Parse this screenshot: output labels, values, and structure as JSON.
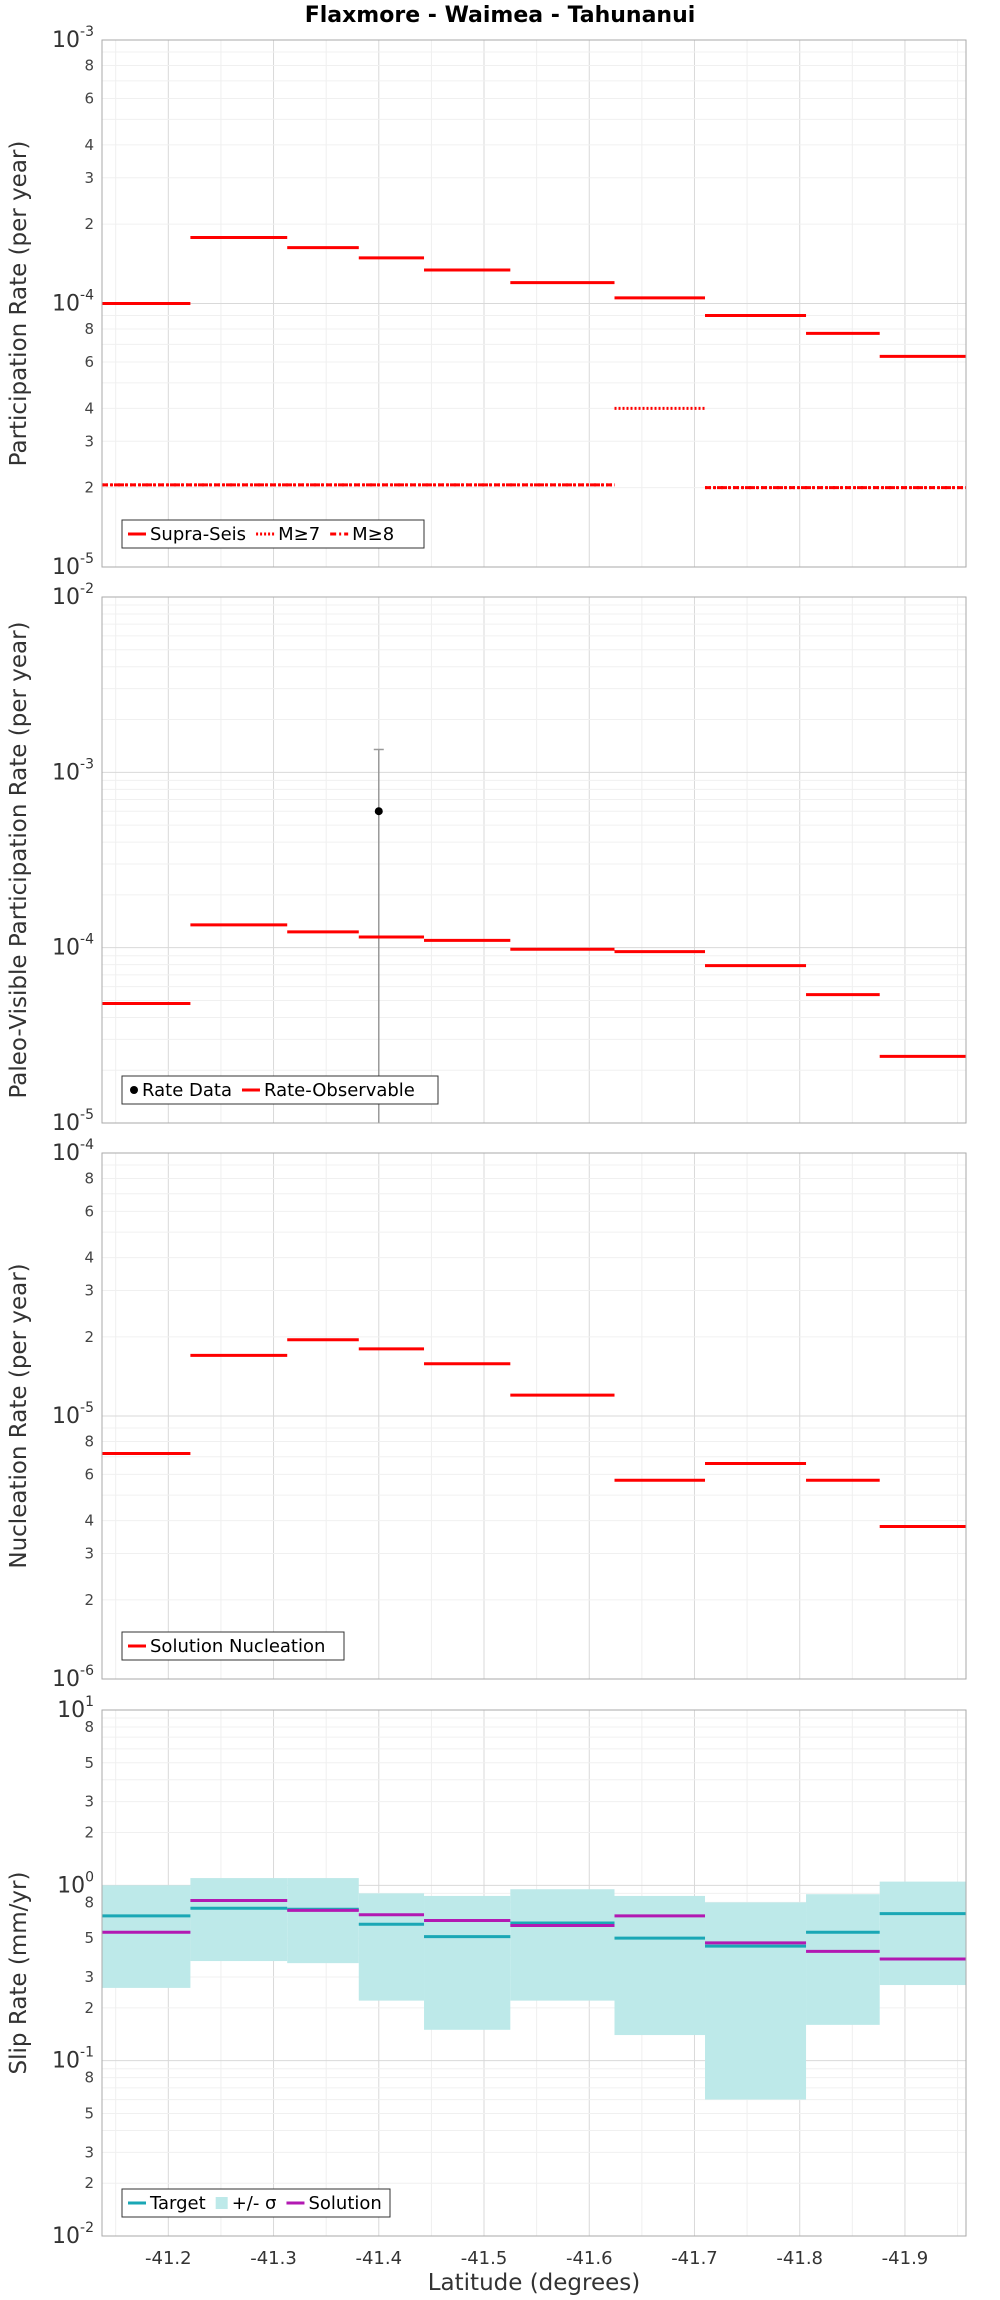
{
  "title": "Flaxmore - Waimea - Tahunanui",
  "xlabel": "Latitude (degrees)",
  "chart_data": [
    {
      "type": "line",
      "ylabel": "Participation Rate (per year)",
      "yscale": "log",
      "ylim": [
        1e-05,
        0.001
      ],
      "xlim": [
        -41.137,
        -41.958
      ],
      "major_ticks": [
        {
          "value": 1e-05,
          "base": "10",
          "exp": "-5"
        },
        {
          "value": 0.0001,
          "base": "10",
          "exp": "-4"
        },
        {
          "value": 0.001,
          "base": "10",
          "exp": "-3"
        }
      ],
      "minor_tick_labels": [
        "2",
        "3",
        "4",
        "6",
        "8"
      ],
      "legend": [
        "Supra-Seis",
        "M≥7",
        "M≥8"
      ],
      "series": [
        {
          "name": "Supra-Seis",
          "style": "solid",
          "color": "#ff0000",
          "segments": [
            [
              -41.137,
              -41.221,
              0.0001
            ],
            [
              -41.221,
              -41.313,
              0.000178
            ],
            [
              -41.313,
              -41.381,
              0.000163
            ],
            [
              -41.381,
              -41.443,
              0.000149
            ],
            [
              -41.443,
              -41.525,
              0.000134
            ],
            [
              -41.525,
              -41.624,
              0.00012
            ],
            [
              -41.624,
              -41.71,
              0.000105
            ],
            [
              -41.71,
              -41.806,
              9e-05
            ],
            [
              -41.806,
              -41.876,
              7.7e-05
            ],
            [
              -41.876,
              -41.958,
              6.3e-05
            ]
          ]
        },
        {
          "name": "M≥7",
          "style": "dotted",
          "color": "#ff0000",
          "segments": [
            [
              -41.137,
              -41.624,
              2.05e-05
            ],
            [
              -41.624,
              -41.71,
              4e-05
            ],
            [
              -41.71,
              -41.958,
              2e-05
            ]
          ]
        },
        {
          "name": "M≥8",
          "style": "dashdot",
          "color": "#ff0000",
          "segments": [
            [
              -41.137,
              -41.624,
              2.05e-05
            ],
            [
              -41.71,
              -41.958,
              2e-05
            ]
          ]
        }
      ]
    },
    {
      "type": "line",
      "ylabel": "Paleo-Visible Participation Rate (per year)",
      "yscale": "log",
      "ylim": [
        1e-05,
        0.01
      ],
      "xlim": [
        -41.137,
        -41.958
      ],
      "major_ticks": [
        {
          "value": 1e-05,
          "base": "10",
          "exp": "-5"
        },
        {
          "value": 0.0001,
          "base": "10",
          "exp": "-4"
        },
        {
          "value": 0.001,
          "base": "10",
          "exp": "-3"
        },
        {
          "value": 0.01,
          "base": "10",
          "exp": "-2"
        }
      ],
      "minor_tick_labels": [],
      "legend": [
        "Rate Data",
        "Rate-Observable"
      ],
      "rate_data": {
        "x": -41.4,
        "y": 0.0006,
        "err_low": 1e-05,
        "err_high": 0.00135
      },
      "series": [
        {
          "name": "Rate-Observable",
          "style": "solid",
          "color": "#ff0000",
          "segments": [
            [
              -41.137,
              -41.221,
              4.8e-05
            ],
            [
              -41.221,
              -41.313,
              0.000135
            ],
            [
              -41.313,
              -41.381,
              0.000123
            ],
            [
              -41.381,
              -41.443,
              0.000115
            ],
            [
              -41.443,
              -41.525,
              0.00011
            ],
            [
              -41.525,
              -41.624,
              9.8e-05
            ],
            [
              -41.624,
              -41.71,
              9.5e-05
            ],
            [
              -41.71,
              -41.806,
              7.9e-05
            ],
            [
              -41.806,
              -41.876,
              5.4e-05
            ],
            [
              -41.876,
              -41.958,
              2.4e-05
            ]
          ]
        }
      ]
    },
    {
      "type": "line",
      "ylabel": "Nucleation Rate (per year)",
      "yscale": "log",
      "ylim": [
        1e-06,
        0.0001
      ],
      "xlim": [
        -41.137,
        -41.958
      ],
      "major_ticks": [
        {
          "value": 1e-06,
          "base": "10",
          "exp": "-6"
        },
        {
          "value": 1e-05,
          "base": "10",
          "exp": "-5"
        },
        {
          "value": 0.0001,
          "base": "10",
          "exp": "-4"
        }
      ],
      "minor_tick_labels": [
        "2",
        "3",
        "4",
        "6",
        "8"
      ],
      "legend": [
        "Solution Nucleation"
      ],
      "series": [
        {
          "name": "Solution Nucleation",
          "style": "solid",
          "color": "#ff0000",
          "segments": [
            [
              -41.137,
              -41.221,
              7.2e-06
            ],
            [
              -41.221,
              -41.313,
              1.7e-05
            ],
            [
              -41.313,
              -41.381,
              1.95e-05
            ],
            [
              -41.381,
              -41.443,
              1.8e-05
            ],
            [
              -41.443,
              -41.525,
              1.58e-05
            ],
            [
              -41.525,
              -41.624,
              1.2e-05
            ],
            [
              -41.624,
              -41.71,
              5.7e-06
            ],
            [
              -41.71,
              -41.806,
              6.6e-06
            ],
            [
              -41.806,
              -41.876,
              5.7e-06
            ],
            [
              -41.876,
              -41.958,
              3.8e-06
            ]
          ]
        }
      ]
    },
    {
      "type": "line",
      "ylabel": "Slip Rate (mm/yr)",
      "yscale": "log",
      "ylim": [
        0.01,
        10
      ],
      "xlim": [
        -41.137,
        -41.958
      ],
      "major_ticks": [
        {
          "value": 0.01,
          "base": "10",
          "exp": "-2"
        },
        {
          "value": 0.1,
          "base": "10",
          "exp": "-1"
        },
        {
          "value": 1,
          "base": "10",
          "exp": "0"
        },
        {
          "value": 10,
          "base": "10",
          "exp": "1"
        }
      ],
      "minor_tick_labels": [
        "2",
        "3",
        "5",
        "8"
      ],
      "legend": [
        "Target",
        "+/- σ",
        "Solution"
      ],
      "sigma_band": {
        "name": "+/- σ",
        "color": "#bde9e9",
        "segments": [
          [
            -41.137,
            -41.221,
            0.26,
            1.0
          ],
          [
            -41.221,
            -41.313,
            0.37,
            1.1
          ],
          [
            -41.313,
            -41.381,
            0.36,
            1.1
          ],
          [
            -41.381,
            -41.443,
            0.22,
            0.9
          ],
          [
            -41.443,
            -41.525,
            0.15,
            0.87
          ],
          [
            -41.525,
            -41.624,
            0.22,
            0.95
          ],
          [
            -41.624,
            -41.71,
            0.14,
            0.87
          ],
          [
            -41.71,
            -41.806,
            0.06,
            0.8
          ],
          [
            -41.806,
            -41.876,
            0.16,
            0.89
          ],
          [
            -41.876,
            -41.958,
            0.27,
            1.05
          ]
        ]
      },
      "series": [
        {
          "name": "Target",
          "style": "solid",
          "color": "#1aa7b5",
          "segments": [
            [
              -41.137,
              -41.221,
              0.67
            ],
            [
              -41.221,
              -41.313,
              0.74
            ],
            [
              -41.313,
              -41.381,
              0.73
            ],
            [
              -41.381,
              -41.443,
              0.6
            ],
            [
              -41.443,
              -41.525,
              0.51
            ],
            [
              -41.525,
              -41.624,
              0.61
            ],
            [
              -41.624,
              -41.71,
              0.5
            ],
            [
              -41.71,
              -41.806,
              0.45
            ],
            [
              -41.806,
              -41.876,
              0.54
            ],
            [
              -41.876,
              -41.958,
              0.69
            ]
          ]
        },
        {
          "name": "Solution",
          "style": "solid",
          "color": "#b219b2",
          "segments": [
            [
              -41.137,
              -41.221,
              0.54
            ],
            [
              -41.221,
              -41.313,
              0.82
            ],
            [
              -41.313,
              -41.381,
              0.72
            ],
            [
              -41.381,
              -41.443,
              0.68
            ],
            [
              -41.443,
              -41.525,
              0.63
            ],
            [
              -41.525,
              -41.624,
              0.59
            ],
            [
              -41.624,
              -41.71,
              0.67
            ],
            [
              -41.71,
              -41.806,
              0.47
            ],
            [
              -41.806,
              -41.876,
              0.42
            ],
            [
              -41.876,
              -41.958,
              0.38
            ]
          ]
        }
      ]
    }
  ],
  "x_ticks": [
    "-41.2",
    "-41.3",
    "-41.4",
    "-41.5",
    "-41.6",
    "-41.7",
    "-41.8",
    "-41.9"
  ],
  "x_tick_values": [
    -41.2,
    -41.3,
    -41.4,
    -41.5,
    -41.6,
    -41.7,
    -41.8,
    -41.9
  ]
}
